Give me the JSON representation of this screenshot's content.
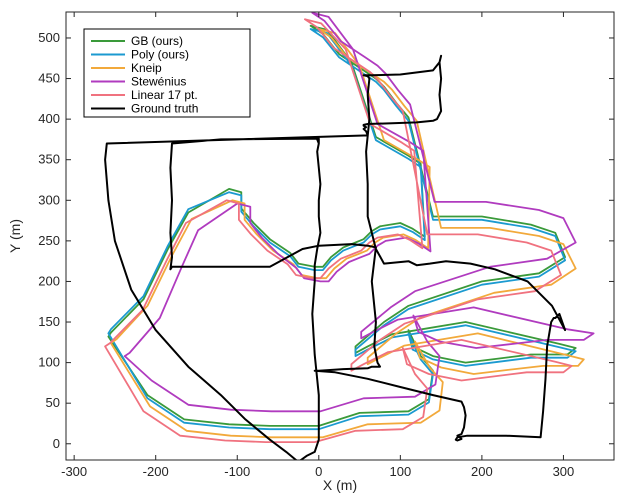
{
  "chart_data": {
    "type": "line",
    "xlabel": "X (m)",
    "ylabel": "Y (m)",
    "xlim": [
      -310,
      362
    ],
    "ylim": [
      -20,
      532
    ],
    "xticks": [
      -300,
      -200,
      -100,
      0,
      100,
      200,
      300
    ],
    "yticks": [
      0,
      50,
      100,
      150,
      200,
      250,
      300,
      350,
      400,
      450,
      500
    ],
    "legend_position": "top-left",
    "grid": false,
    "series": [
      {
        "name": "GB (ours)",
        "color": "#3a9a3a",
        "x": [
          -258,
          -255,
          -215,
          -185,
          -160,
          -110,
          -95,
          -95,
          -80,
          -60,
          -35,
          -25,
          -5,
          5,
          15,
          30,
          45,
          55,
          65,
          75,
          100,
          115,
          130,
          125,
          110,
          70,
          40,
          10,
          -10,
          5,
          25,
          55,
          70,
          80,
          95,
          110,
          140,
          200,
          260,
          290,
          302,
          270,
          200,
          110,
          80,
          45,
          45,
          60,
          90,
          180,
          295,
          315,
          305,
          260,
          220,
          180,
          140,
          115,
          110,
          125,
          140,
          135,
          110,
          50,
          0,
          -60,
          -110,
          -165,
          -210,
          -258
        ],
        "y": [
          132,
          137,
          178,
          240,
          285,
          314,
          310,
          290,
          272,
          252,
          235,
          222,
          218,
          218,
          230,
          242,
          248,
          252,
          262,
          268,
          272,
          265,
          255,
          345,
          355,
          378,
          470,
          510,
          515,
          505,
          480,
          460,
          450,
          440,
          420,
          402,
          280,
          280,
          270,
          260,
          230,
          210,
          200,
          170,
          150,
          120,
          112,
          120,
          135,
          150,
          123,
          118,
          110,
          110,
          105,
          100,
          108,
          120,
          140,
          108,
          90,
          55,
          40,
          38,
          22,
          22,
          24,
          30,
          60,
          132
        ]
      },
      {
        "name": "Poly (ours)",
        "color": "#1b9ad0",
        "x": [
          -258,
          -255,
          -215,
          -185,
          -160,
          -110,
          -95,
          -95,
          -80,
          -60,
          -35,
          -25,
          -5,
          5,
          15,
          30,
          45,
          55,
          65,
          75,
          100,
          115,
          130,
          125,
          110,
          70,
          40,
          10,
          -10,
          5,
          25,
          55,
          70,
          80,
          95,
          110,
          140,
          200,
          260,
          290,
          302,
          270,
          200,
          110,
          80,
          45,
          45,
          60,
          90,
          180,
          295,
          315,
          305,
          260,
          220,
          180,
          140,
          115,
          110,
          125,
          140,
          135,
          110,
          50,
          0,
          -60,
          -110,
          -165,
          -210,
          -258
        ],
        "y": [
          136,
          141,
          182,
          244,
          289,
          310,
          306,
          286,
          268,
          248,
          231,
          218,
          214,
          214,
          226,
          238,
          244,
          248,
          258,
          264,
          268,
          261,
          251,
          341,
          351,
          374,
          466,
          506,
          511,
          501,
          476,
          456,
          446,
          436,
          416,
          398,
          276,
          276,
          266,
          256,
          226,
          206,
          196,
          166,
          146,
          116,
          108,
          116,
          131,
          146,
          119,
          114,
          106,
          106,
          101,
          96,
          104,
          116,
          136,
          104,
          86,
          51,
          36,
          34,
          18,
          18,
          20,
          26,
          56,
          136
        ]
      },
      {
        "name": "Kneip",
        "color": "#f2a93b",
        "x": [
          -255,
          -248,
          -210,
          -180,
          -156,
          -106,
          -91,
          -91,
          -76,
          -56,
          -31,
          -21,
          -1,
          9,
          19,
          34,
          49,
          59,
          69,
          79,
          104,
          119,
          134,
          136,
          120,
          80,
          50,
          20,
          0,
          15,
          35,
          65,
          80,
          90,
          105,
          120,
          150,
          210,
          270,
          300,
          315,
          285,
          215,
          125,
          95,
          60,
          60,
          75,
          105,
          195,
          305,
          325,
          318,
          275,
          232,
          190,
          150,
          124,
          118,
          136,
          152,
          148,
          125,
          60,
          5,
          -58,
          -108,
          -162,
          -207,
          -255
        ],
        "y": [
          124,
          129,
          170,
          232,
          277,
          300,
          296,
          276,
          258,
          238,
          221,
          208,
          204,
          204,
          216,
          228,
          234,
          238,
          248,
          254,
          258,
          251,
          241,
          341,
          351,
          374,
          466,
          506,
          511,
          501,
          476,
          456,
          446,
          436,
          416,
          398,
          266,
          266,
          256,
          246,
          216,
          196,
          186,
          156,
          136,
          106,
          98,
          106,
          121,
          136,
          109,
          104,
          96,
          96,
          91,
          86,
          94,
          106,
          126,
          94,
          76,
          41,
          26,
          24,
          8,
          8,
          10,
          16,
          46,
          124
        ]
      },
      {
        "name": "Stewénius",
        "color": "#b03bbf",
        "x": [
          -238,
          -232,
          -195,
          -168,
          -148,
          -100,
          -84,
          -84,
          -70,
          -50,
          -28,
          -18,
          2,
          12,
          22,
          37,
          52,
          62,
          72,
          82,
          107,
          122,
          137,
          128,
          113,
          72,
          42,
          12,
          -8,
          7,
          27,
          57,
          72,
          82,
          97,
          112,
          142,
          205,
          270,
          300,
          315,
          280,
          210,
          118,
          88,
          52,
          52,
          67,
          97,
          190,
          305,
          337,
          325,
          280,
          238,
          193,
          148,
          122,
          116,
          133,
          148,
          143,
          118,
          55,
          2,
          -58,
          -108,
          -160,
          -205,
          -238
        ],
        "y": [
          108,
          112,
          155,
          218,
          263,
          296,
          292,
          272,
          254,
          234,
          217,
          204,
          200,
          200,
          212,
          224,
          230,
          234,
          244,
          250,
          254,
          247,
          237,
          361,
          371,
          394,
          486,
          526,
          531,
          521,
          496,
          476,
          466,
          456,
          436,
          418,
          298,
          298,
          288,
          278,
          248,
          228,
          218,
          188,
          168,
          138,
          130,
          138,
          153,
          168,
          141,
          136,
          128,
          128,
          123,
          118,
          126,
          138,
          158,
          126,
          108,
          73,
          58,
          56,
          40,
          40,
          42,
          48,
          78,
          108
        ]
      },
      {
        "name": "Linear 17 pt.",
        "color": "#f0727f",
        "x": [
          -262,
          -256,
          -216,
          -186,
          -163,
          -113,
          -98,
          -98,
          -83,
          -63,
          -38,
          -28,
          -8,
          2,
          12,
          27,
          42,
          52,
          62,
          72,
          97,
          112,
          127,
          117,
          102,
          63,
          33,
          3,
          -17,
          -2,
          18,
          48,
          63,
          73,
          88,
          103,
          133,
          195,
          255,
          285,
          297,
          265,
          195,
          105,
          75,
          40,
          40,
          55,
          85,
          175,
          290,
          310,
          300,
          255,
          215,
          175,
          135,
          108,
          103,
          118,
          133,
          128,
          103,
          45,
          -5,
          -65,
          -115,
          -170,
          -215,
          -262
        ],
        "y": [
          120,
          124,
          165,
          227,
          272,
          300,
          296,
          276,
          258,
          238,
          221,
          208,
          204,
          204,
          216,
          228,
          234,
          238,
          248,
          254,
          258,
          251,
          241,
          361,
          371,
          394,
          486,
          518,
          523,
          513,
          488,
          468,
          458,
          448,
          428,
          410,
          258,
          258,
          248,
          238,
          208,
          188,
          178,
          148,
          128,
          98,
          90,
          98,
          113,
          128,
          101,
          96,
          88,
          88,
          83,
          78,
          86,
          98,
          118,
          86,
          68,
          33,
          18,
          16,
          2,
          2,
          4,
          10,
          40,
          120
        ]
      },
      {
        "name": "Ground truth",
        "color": "#000000",
        "x": [
          -260,
          -262,
          -258,
          -250,
          -230,
          -200,
          -160,
          -120,
          -90,
          -60,
          -40,
          -28,
          -25,
          -22,
          -15,
          -5,
          0,
          0,
          -5,
          -8,
          -5,
          -5,
          -2,
          0,
          2,
          0,
          0,
          2,
          0,
          -2,
          0,
          -2,
          0,
          0,
          -120,
          -180,
          -182,
          -180,
          -182,
          -180,
          -182,
          -180,
          -100,
          -60,
          -20,
          0,
          40,
          60,
          70,
          65,
          70,
          68,
          70,
          72,
          75,
          65,
          60,
          30,
          0,
          -5,
          20,
          60,
          100,
          140,
          175,
          178,
          180,
          178,
          175,
          170,
          173,
          175,
          170,
          168,
          170,
          182,
          230,
          272,
          275,
          278,
          280,
          285,
          288,
          290,
          295,
          302,
          286,
          256,
          216,
          186,
          156,
          136,
          120,
          110,
          80,
          70,
          60,
          60,
          58,
          62,
          60,
          62,
          60,
          55,
          65,
          100,
          140,
          148,
          150,
          148,
          150,
          148,
          150,
          145,
          140,
          120,
          90,
          60,
          55,
          55,
          58,
          55,
          58,
          60,
          -260
        ],
        "y": [
          370,
          350,
          300,
          250,
          190,
          140,
          95,
          60,
          30,
          5,
          -10,
          -20,
          -22,
          -20,
          -15,
          -10,
          5,
          60,
          110,
          160,
          200,
          220,
          240,
          250,
          260,
          280,
          300,
          320,
          340,
          360,
          370,
          375,
          370,
          376,
          375,
          370,
          340,
          300,
          260,
          230,
          215,
          218,
          218,
          218,
          240,
          244,
          246,
          244,
          242,
          200,
          150,
          120,
          110,
          100,
          95,
          95,
          93,
          92,
          90,
          90,
          88,
          80,
          70,
          60,
          52,
          45,
          35,
          20,
          12,
          10,
          8,
          6,
          4,
          5,
          8,
          10,
          10,
          8,
          40,
          80,
          120,
          150,
          155,
          155,
          160,
          140,
          170,
          200,
          215,
          222,
          225,
          222,
          220,
          225,
          222,
          240,
          280,
          320,
          360,
          400,
          430,
          450,
          453,
          454,
          454,
          455,
          460,
          470,
          478,
          470,
          450,
          430,
          410,
          400,
          398,
          396,
          395,
          394,
          393,
          392,
          390,
          388,
          385,
          380,
          370
        ]
      }
    ]
  }
}
